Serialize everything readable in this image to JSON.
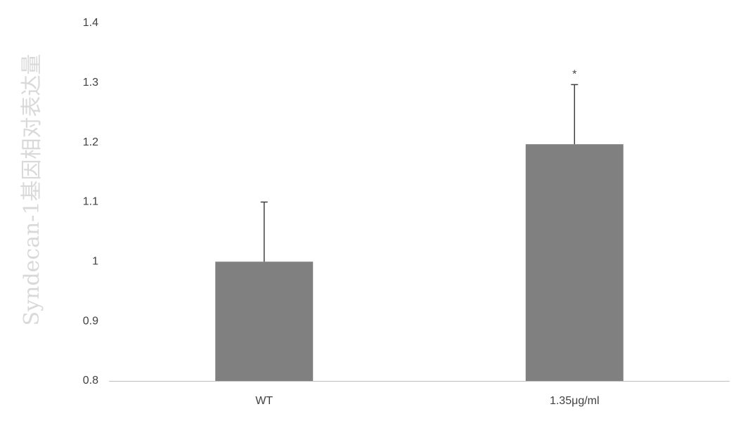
{
  "chart_data": {
    "type": "bar",
    "title": "",
    "xlabel": "",
    "ylabel": "Syndecan-1基因相对表达量",
    "categories": [
      "WT",
      "1.35μg/ml"
    ],
    "values": [
      1.0,
      1.197
    ],
    "error_upper": [
      0.1,
      0.1
    ],
    "annotations": [
      "",
      "*"
    ],
    "ylim": [
      0.8,
      1.4
    ],
    "yticks": [
      0.8,
      0.9,
      1.0,
      1.1,
      1.2,
      1.3,
      1.4
    ],
    "ytick_labels": [
      "0.8",
      "0.9",
      "1",
      "1.1",
      "1.2",
      "1.3",
      "1.4"
    ],
    "grid": false,
    "legend": "none",
    "colors": {
      "bar": "#808080",
      "error_bar": "#404040",
      "axis": "#bfbfbf",
      "tick_text": "#404040",
      "ylabel_text": "#d9d9d9"
    }
  }
}
